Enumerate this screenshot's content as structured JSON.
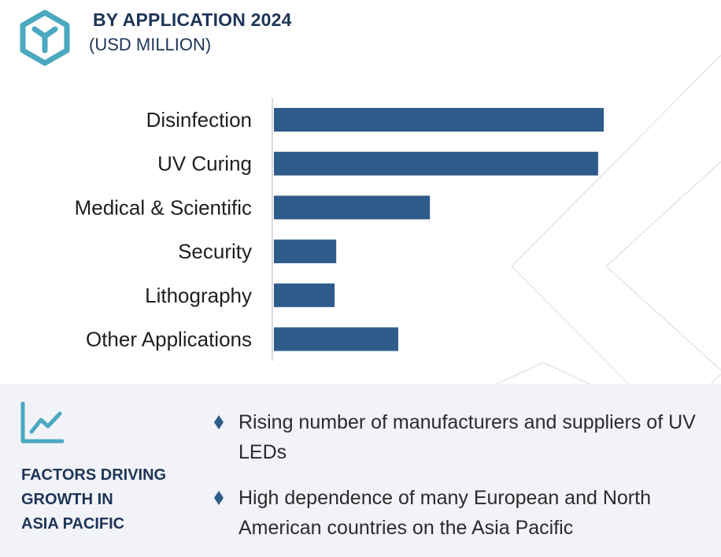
{
  "header": {
    "title": "BY APPLICATION  2024",
    "subtitle": "(USD MILLION)"
  },
  "chart_data": {
    "type": "bar",
    "orientation": "horizontal",
    "categories": [
      "Disinfection",
      "UV Curing",
      "Medical & Scientific",
      "Security",
      "Lithography",
      "Other Applications"
    ],
    "values": [
      100,
      98.3,
      47.3,
      18.9,
      18.4,
      37.7
    ],
    "xlim": [
      0,
      100
    ],
    "title": "BY APPLICATION  2024",
    "xlabel": "",
    "ylabel": "",
    "grid": false,
    "legend": "none",
    "bar_color": "#2e5b8a"
  },
  "factors": {
    "title_lines": [
      "FACTORS DRIVING",
      "GROWTH IN",
      "ASIA PACIFIC"
    ],
    "bullets": [
      "Rising number of manufacturers and suppliers of UV LEDs",
      "High dependence of many European and North American countries on the Asia Pacific"
    ]
  },
  "colors": {
    "accent": "#4aa8c0",
    "heading": "#1d3557",
    "bar": "#2e5b8a",
    "panel": "#f2f3f8",
    "diamond": "#2e5b8a"
  },
  "icons": {
    "logo": "cube-logo-icon",
    "growth": "line-chart-icon",
    "bullet": "diamond-bullet-icon"
  }
}
